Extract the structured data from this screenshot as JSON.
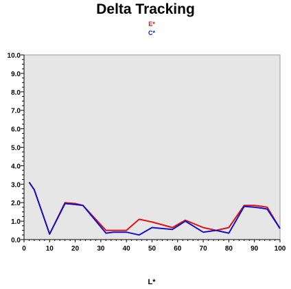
{
  "chart_data": {
    "type": "line",
    "title": "Delta Tracking",
    "xlabel": "L*",
    "ylabel": "",
    "xlim": [
      0,
      100
    ],
    "ylim": [
      0,
      10
    ],
    "xticks": [
      0,
      10,
      20,
      30,
      40,
      50,
      60,
      70,
      80,
      90,
      100
    ],
    "yticks": [
      "0.0",
      "1.0",
      "2.0",
      "3.0",
      "4.0",
      "5.0",
      "6.0",
      "7.0",
      "8.0",
      "9.0",
      "10.0"
    ],
    "grid": false,
    "legend_position": "top-center",
    "plot_background": "#e6e6e6",
    "series": [
      {
        "name": "E*",
        "color": "#dd1111",
        "x": [
          2,
          4,
          10,
          16,
          20,
          23,
          32,
          35,
          40,
          45,
          50,
          58,
          63,
          70,
          75,
          80,
          86,
          90,
          93,
          95,
          100
        ],
        "y": [
          3.1,
          2.7,
          0.3,
          2.0,
          1.95,
          1.85,
          0.5,
          0.5,
          0.5,
          1.1,
          0.95,
          0.65,
          1.05,
          0.65,
          0.5,
          0.65,
          1.85,
          1.85,
          1.8,
          1.75,
          0.6
        ]
      },
      {
        "name": "C*",
        "color": "#1111cc",
        "x": [
          2,
          4,
          10,
          16,
          20,
          23,
          32,
          35,
          40,
          45,
          50,
          58,
          63,
          70,
          75,
          80,
          86,
          90,
          93,
          95,
          100
        ],
        "y": [
          3.1,
          2.7,
          0.3,
          1.95,
          1.9,
          1.85,
          0.35,
          0.4,
          0.4,
          0.25,
          0.65,
          0.55,
          1.0,
          0.4,
          0.5,
          0.35,
          1.8,
          1.75,
          1.7,
          1.65,
          0.6
        ]
      }
    ]
  }
}
